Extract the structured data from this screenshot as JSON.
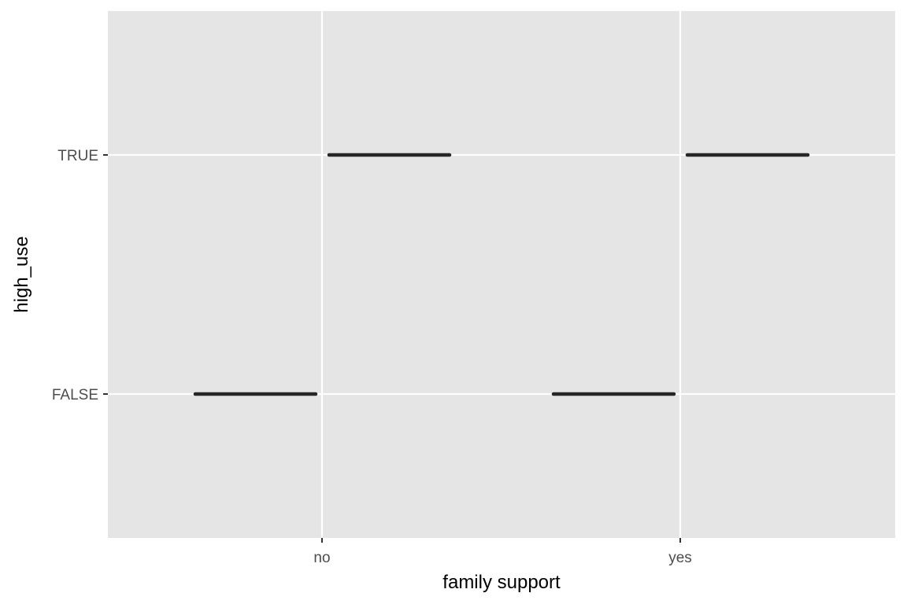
{
  "chart_data": {
    "type": "boxplot",
    "title": "",
    "xlabel": "family support",
    "ylabel": "high_use",
    "categories": [
      "no",
      "yes"
    ],
    "y_levels": [
      "FALSE",
      "TRUE"
    ],
    "series": [
      {
        "values": [
          {
            "category": "no",
            "level": "FALSE",
            "offset": -0.5
          },
          {
            "category": "no",
            "level": "TRUE",
            "offset": 0.5
          },
          {
            "category": "yes",
            "level": "FALSE",
            "offset": -0.5
          },
          {
            "category": "yes",
            "level": "TRUE",
            "offset": 0.5
          }
        ]
      }
    ],
    "grid": true,
    "legend": "none",
    "colors": {
      "panel": "#e5e5e5",
      "grid": "#ffffff",
      "mark": "#262626",
      "tick": "#333333"
    }
  }
}
